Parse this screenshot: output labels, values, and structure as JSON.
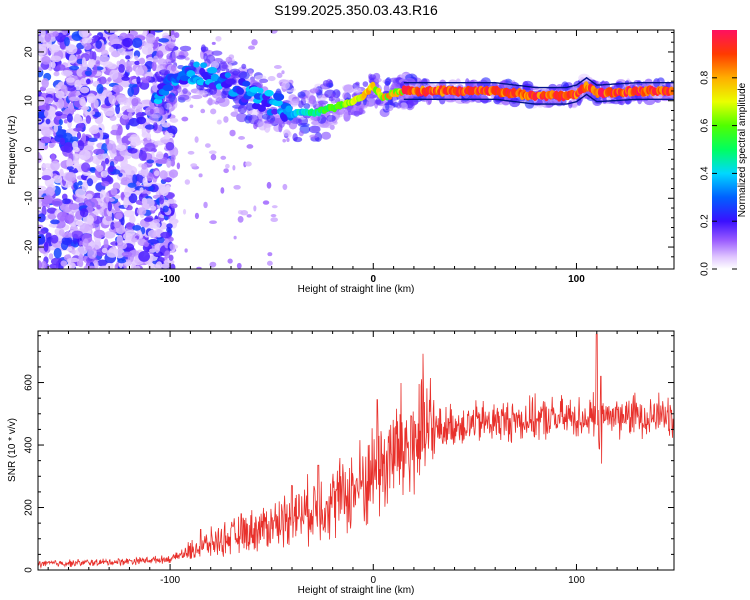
{
  "page_title": "S199.2025.350.03.43.R16",
  "chart_data": [
    {
      "type": "heatmap",
      "title": "S199.2025.350.03.43.R16",
      "xlabel": "Height of straight line (km)",
      "ylabel": "Frequency (Hz)",
      "xlim": [
        -165,
        148
      ],
      "ylim": [
        -24.5,
        24.5
      ],
      "xticks": [
        -100,
        0,
        100
      ],
      "yticks": [
        -20,
        -10,
        0,
        10,
        20
      ],
      "colorbar": {
        "label": "Normalized spectral amplitude",
        "range": [
          0,
          1
        ],
        "ticks": [
          0.0,
          0.2,
          0.4,
          0.6,
          0.8
        ]
      },
      "ridge": {
        "description": "dominant frequency vs height",
        "points": [
          [
            -107,
            11
          ],
          [
            -100,
            14
          ],
          [
            -90,
            16
          ],
          [
            -80,
            15
          ],
          [
            -70,
            13
          ],
          [
            -60,
            11
          ],
          [
            -50,
            9.5
          ],
          [
            -40,
            7.5
          ],
          [
            -30,
            7.5
          ],
          [
            -20,
            8.5
          ],
          [
            -10,
            10
          ],
          [
            -5,
            11
          ],
          [
            0,
            13
          ],
          [
            5,
            10.5
          ],
          [
            10,
            11.5
          ],
          [
            15,
            12
          ],
          [
            40,
            12
          ],
          [
            60,
            12
          ],
          [
            70,
            11.5
          ],
          [
            80,
            11
          ],
          [
            95,
            11
          ],
          [
            100,
            11.5
          ],
          [
            105,
            13
          ],
          [
            110,
            11.5
          ],
          [
            130,
            12
          ],
          [
            148,
            12
          ]
        ]
      }
    },
    {
      "type": "line",
      "xlabel": "Height of straight line (km)",
      "ylabel": "SNR (10 * v/v)",
      "xlim": [
        -165,
        148
      ],
      "ylim": [
        0,
        765
      ],
      "xticks": [
        -100,
        0,
        100
      ],
      "yticks": [
        0,
        200,
        400,
        600
      ],
      "color": "#e8302b",
      "trend": [
        [
          -165,
          20
        ],
        [
          -130,
          25
        ],
        [
          -100,
          35
        ],
        [
          -90,
          60
        ],
        [
          -80,
          85
        ],
        [
          -70,
          105
        ],
        [
          -60,
          125
        ],
        [
          -50,
          145
        ],
        [
          -40,
          170
        ],
        [
          -30,
          195
        ],
        [
          -20,
          220
        ],
        [
          -10,
          255
        ],
        [
          -5,
          280
        ],
        [
          0,
          310
        ],
        [
          5,
          340
        ],
        [
          10,
          370
        ],
        [
          20,
          410
        ],
        [
          30,
          445
        ],
        [
          40,
          465
        ],
        [
          50,
          470
        ],
        [
          70,
          480
        ],
        [
          90,
          485
        ],
        [
          110,
          490
        ],
        [
          130,
          495
        ],
        [
          148,
          500
        ]
      ],
      "spikes": [
        [
          -85,
          130
        ],
        [
          -65,
          180
        ],
        [
          -40,
          270
        ],
        [
          -27,
          335
        ],
        [
          2,
          545
        ],
        [
          110,
          755
        ],
        [
          112,
          620
        ]
      ]
    }
  ]
}
